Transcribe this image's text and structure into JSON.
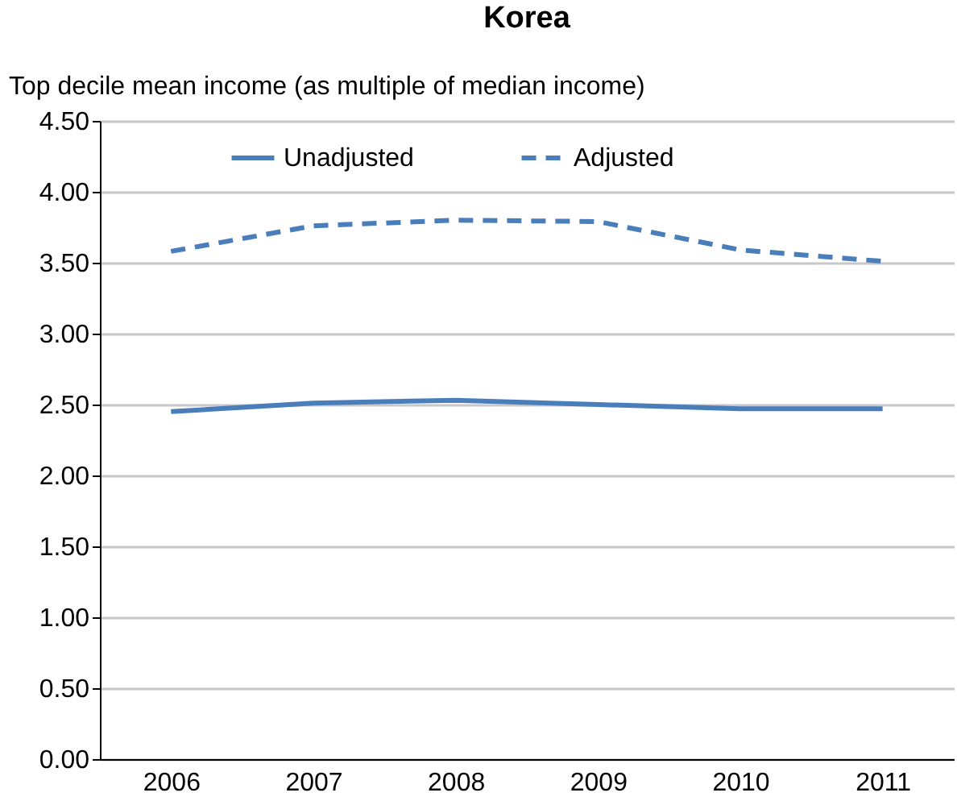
{
  "chart_data": {
    "type": "line",
    "title": "Korea",
    "ylabel": "Top decile mean income (as multiple of median income)",
    "categories": [
      "2006",
      "2007",
      "2008",
      "2009",
      "2010",
      "2011"
    ],
    "series": [
      {
        "name": "Unadjusted",
        "color": "#4a7ebb",
        "line_style": "solid",
        "values": [
          2.45,
          2.51,
          2.53,
          2.5,
          2.47,
          2.47
        ]
      },
      {
        "name": "Adjusted",
        "color": "#4a7ebb",
        "line_style": "dashed",
        "values": [
          3.58,
          3.76,
          3.8,
          3.79,
          3.59,
          3.51
        ]
      }
    ],
    "ylim": [
      0,
      4.5
    ],
    "yticks": [
      {
        "value": 0,
        "label": "0.00"
      },
      {
        "value": 0.5,
        "label": "0.50"
      },
      {
        "value": 1,
        "label": "1.00"
      },
      {
        "value": 1.5,
        "label": "1.50"
      },
      {
        "value": 2,
        "label": "2.00"
      },
      {
        "value": 2.5,
        "label": "2.50"
      },
      {
        "value": 3,
        "label": "3.00"
      },
      {
        "value": 3.5,
        "label": "3.50"
      },
      {
        "value": 4,
        "label": "4.00"
      },
      {
        "value": 4.5,
        "label": "4.50"
      }
    ],
    "grid": "y",
    "legend": "top",
    "marker": "none"
  }
}
